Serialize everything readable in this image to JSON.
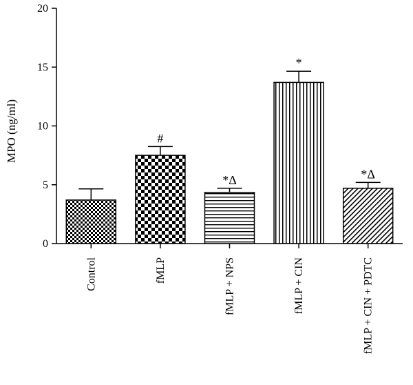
{
  "chart_data": {
    "type": "bar",
    "title": "",
    "xlabel": "",
    "ylabel": "MPO (ng/ml)",
    "ylim": [
      0,
      20
    ],
    "yticks": [
      "0",
      "5",
      "10",
      "15",
      "20"
    ],
    "grid": false,
    "categories": [
      "Control",
      "fMLP",
      "fMLP + NPS",
      "fMLP + CIN",
      "fMLP + CIN + PDTC"
    ],
    "values": [
      3.7,
      7.5,
      4.35,
      13.7,
      4.7
    ],
    "errors": [
      0.95,
      0.75,
      0.35,
      0.95,
      0.5
    ],
    "annotations": [
      "",
      "#",
      "*Δ",
      "*",
      "*Δ"
    ],
    "patterns": [
      "fine-checker",
      "coarse-checker",
      "horizontal-lines",
      "vertical-lines",
      "diagonal-lines"
    ]
  }
}
